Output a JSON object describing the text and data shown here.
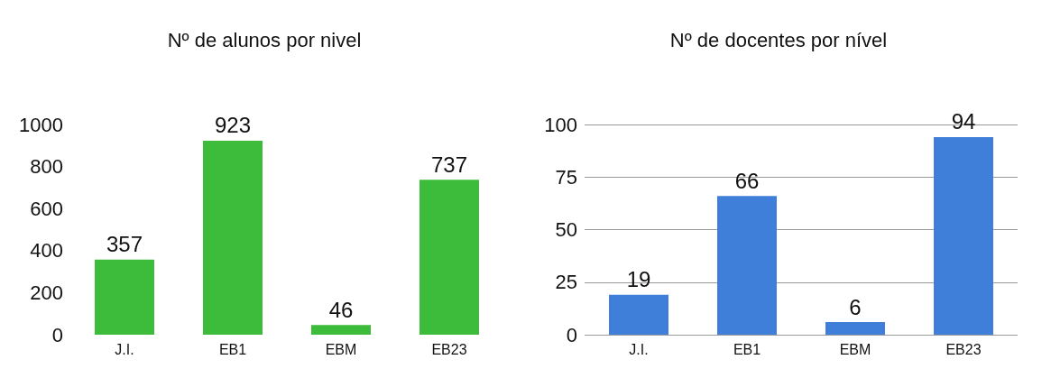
{
  "chart_data": [
    {
      "type": "bar",
      "title": "Nº de alunos por nivel",
      "categories": [
        "J.I.",
        "EB1",
        "EBM",
        "EB23"
      ],
      "values": [
        357,
        923,
        46,
        737
      ],
      "color": "#3dbb3a",
      "ylim": [
        0,
        1000
      ],
      "yticks": [
        0,
        200,
        400,
        600,
        800,
        1000
      ],
      "grid": false,
      "data_labels": true
    },
    {
      "type": "bar",
      "title": "Nº de docentes por nível",
      "categories": [
        "J.I.",
        "EB1",
        "EBM",
        "EB23"
      ],
      "values": [
        19,
        66,
        6,
        94
      ],
      "color": "#3f7fd9",
      "ylim": [
        0,
        100
      ],
      "yticks": [
        0,
        25,
        50,
        75,
        100
      ],
      "grid": "y",
      "data_labels": true
    }
  ]
}
